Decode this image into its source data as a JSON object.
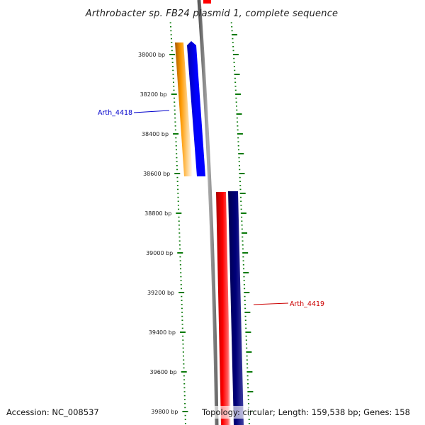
{
  "title": "Arthrobacter sp. FB24 plasmid 1, complete sequence",
  "footer": {
    "accession": "Accession: NC_008537",
    "topology": "Topology: circular; Length: 159,538 bp; Genes: 158"
  },
  "colors": {
    "tick": "#0a7a0a",
    "backbone": "#8a8a8a",
    "orange_gene": "#ff9a00",
    "blue_gene": "#0000ff",
    "red_gene": "#ff0000",
    "navy_gene": "#00007a",
    "label_blue": "#0000cc",
    "label_red": "#cc0000"
  },
  "scale_labels": [
    {
      "bp": 38000,
      "text": "38000 bp"
    },
    {
      "bp": 38200,
      "text": "38200 bp"
    },
    {
      "bp": 38400,
      "text": "38400 bp"
    },
    {
      "bp": 38600,
      "text": "38600 bp"
    },
    {
      "bp": 38800,
      "text": "38800 bp"
    },
    {
      "bp": 39000,
      "text": "39000 bp"
    },
    {
      "bp": 39200,
      "text": "39200 bp"
    },
    {
      "bp": 39400,
      "text": "39400 bp"
    },
    {
      "bp": 39600,
      "text": "39600 bp"
    },
    {
      "bp": 39800,
      "text": "39800 bp"
    }
  ],
  "genes": [
    {
      "name": "Arth_4418",
      "strand": "reverse",
      "color_key": "blue_gene",
      "label_color_key": "label_blue"
    },
    {
      "name": "Arth_4419",
      "strand": "forward",
      "color_key": "red_gene",
      "label_color_key": "label_red"
    }
  ]
}
